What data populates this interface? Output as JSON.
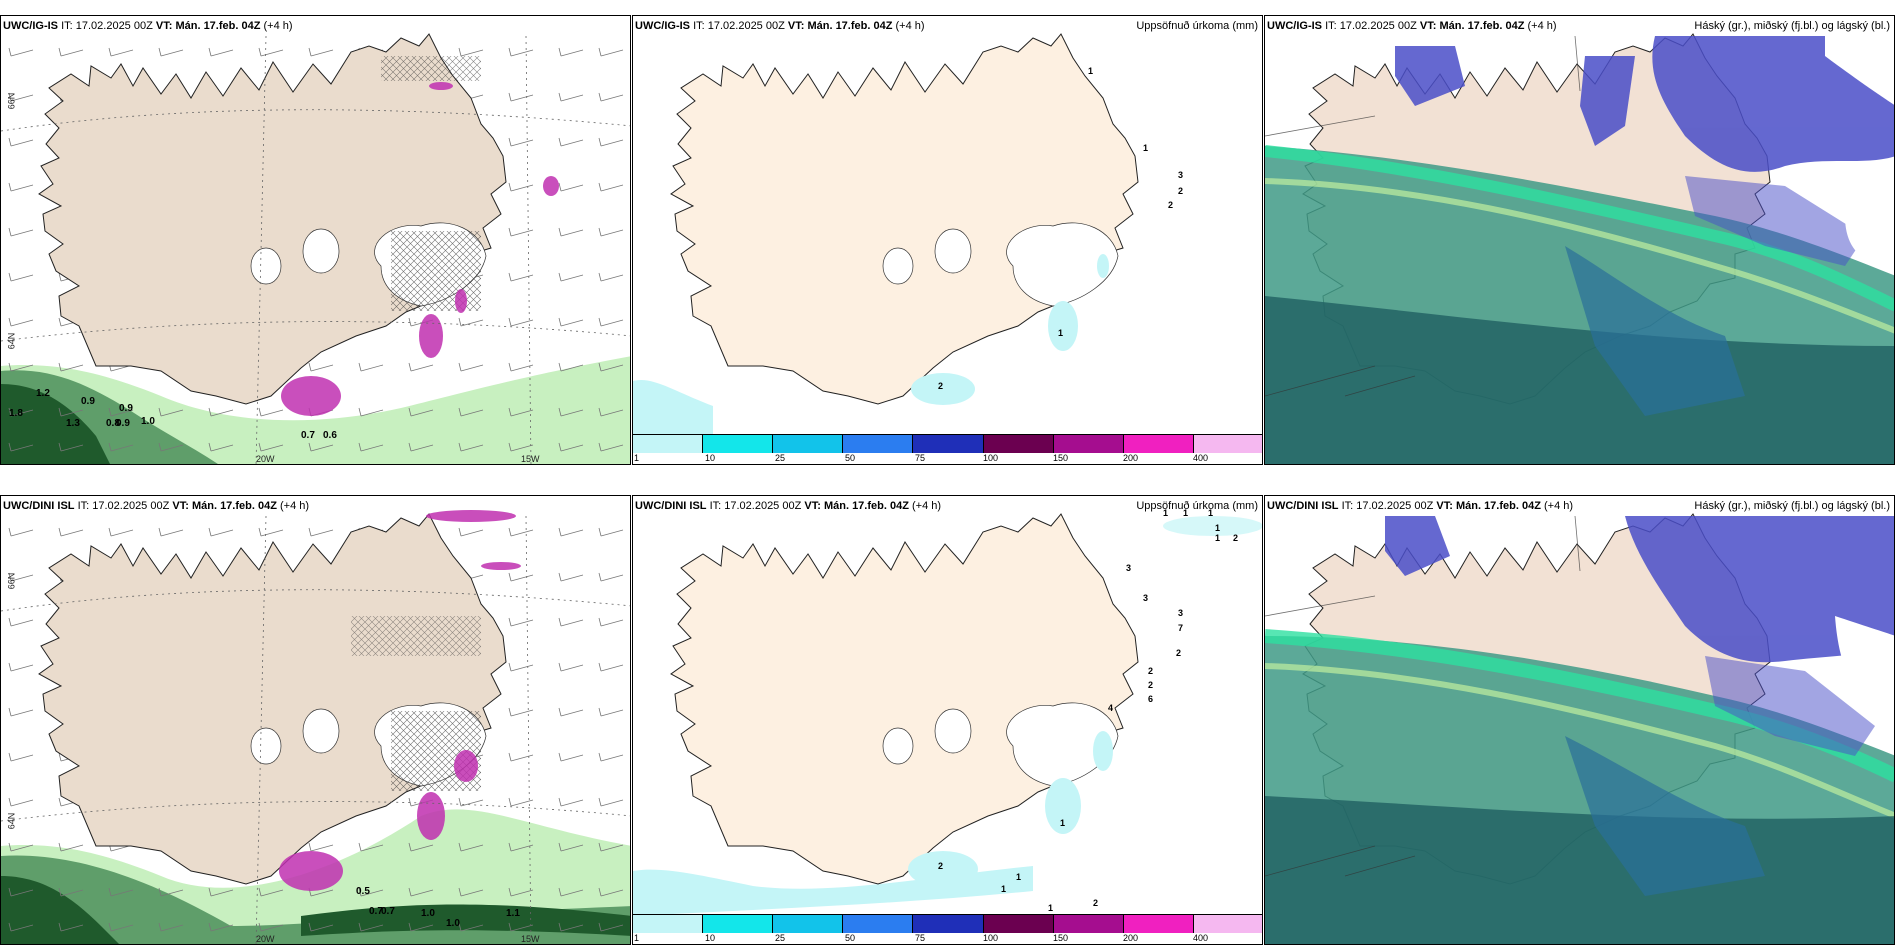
{
  "rows": [
    {
      "model": "UWC/IG-IS",
      "it_label": "IT:",
      "it_value": "17.02.2025 00Z",
      "vt_label": "VT:",
      "vt_value": "Mán. 17.feb. 04Z",
      "lead": "(+4 h)",
      "wind_labels": [
        "1.2",
        "0.9",
        "0.9",
        "1.8",
        "1.3",
        "0.8",
        "0.9",
        "1.0",
        "0.7",
        "0.6"
      ],
      "accum_labels": [
        "1",
        "1",
        "3",
        "2",
        "2",
        "1",
        "2"
      ]
    },
    {
      "model": "UWC/DINI ISL",
      "it_label": "IT:",
      "it_value": "17.02.2025 00Z",
      "vt_label": "VT:",
      "vt_value": "Mán. 17.feb. 04Z",
      "lead": "(+4 h)",
      "wind_labels": [
        "0.5",
        "0.7",
        "0.7",
        "1.0",
        "1.0",
        "1.1"
      ],
      "accum_labels": [
        "1",
        "1",
        "1",
        "1",
        "1",
        "2",
        "3",
        "3",
        "3",
        "7",
        "2",
        "2",
        "2",
        "6",
        "4",
        "1",
        "2",
        "1",
        "1",
        "1",
        "2"
      ]
    }
  ],
  "accum_title": "Uppsöfnuð úrkoma (mm)",
  "cloud_title": "Háský (gr.), miðský (fj.bl.) og lágský (bl.)",
  "lat_labels": [
    "66N",
    "64N"
  ],
  "lon_labels": [
    "20W",
    "15W"
  ],
  "colorbar": {
    "ticks": [
      "1",
      "10",
      "25",
      "50",
      "75",
      "100",
      "150",
      "200",
      "400"
    ],
    "colors": [
      "#c4f5f7",
      "#13e6ea",
      "#12c3ea",
      "#2b7df0",
      "#1f2fb8",
      "#6b0050",
      "#a50d8f",
      "#f020c0",
      "#f5b8f0"
    ]
  },
  "colors": {
    "land": "#f6e3d0",
    "land_wind": "#eadccd",
    "ice": "#ffffff",
    "precip_green_light": "#c8f0c0",
    "precip_green_dark": "#1f5a2c",
    "magenta": "#c030b0",
    "cloud_teal": "#3f9a86",
    "cloud_blue": "#4a4ec8"
  }
}
